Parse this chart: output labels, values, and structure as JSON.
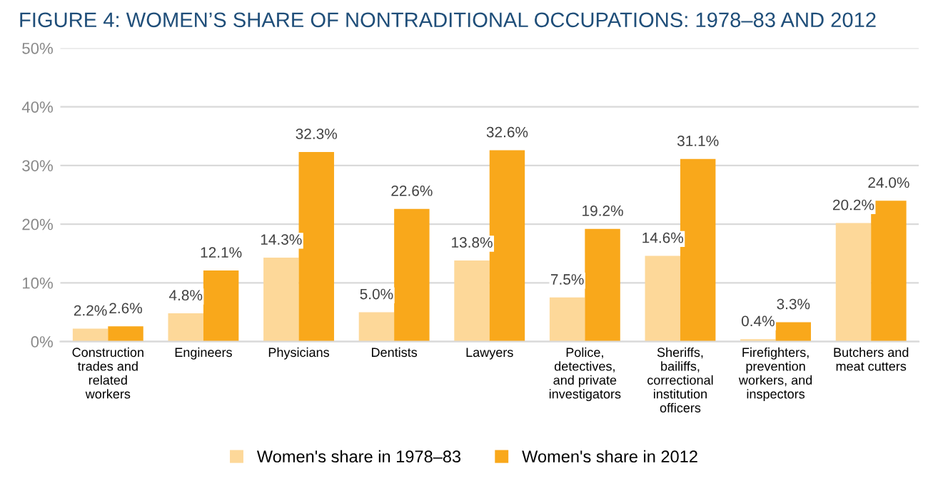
{
  "chart_data": {
    "type": "bar",
    "title": "FIGURE 4: WOMEN’S SHARE OF NONTRADITIONAL OCCUPATIONS: 1978–83 AND 2012",
    "categories": [
      "Construction\ntrades and\nrelated\nworkers",
      "Engineers",
      "Physicians",
      "Dentists",
      "Lawyers",
      "Police,\ndetectives,\nand private\ninvestigators",
      "Sheriffs,\nbailiffs,\ncorrectional\ninstitution\nofficers",
      "Firefighters,\nprevention\nworkers, and\ninspectors",
      "Butchers and\nmeat cutters"
    ],
    "series": [
      {
        "name": "Women's share in 1978–83",
        "color": "#fdd899",
        "values": [
          2.2,
          4.8,
          14.3,
          5.0,
          13.8,
          7.5,
          14.6,
          0.4,
          20.2
        ],
        "value_labels": [
          "2.2%",
          "4.8%",
          "14.3%",
          "5.0%",
          "13.8%",
          "7.5%",
          "14.6%",
          "0.4%",
          "20.2%"
        ]
      },
      {
        "name": "Women's share in 2012",
        "color": "#f9a81b",
        "values": [
          2.6,
          12.1,
          32.3,
          22.6,
          32.6,
          19.2,
          31.1,
          3.3,
          24.0
        ],
        "value_labels": [
          "2.6%",
          "12.1%",
          "32.3%",
          "22.6%",
          "32.6%",
          "19.2%",
          "31.1%",
          "3.3%",
          "24.0%"
        ]
      }
    ],
    "ylim": [
      0,
      50
    ],
    "yticks": [
      {
        "value": 0,
        "label": "0%"
      },
      {
        "value": 10,
        "label": "10%"
      },
      {
        "value": 20,
        "label": "20%"
      },
      {
        "value": 30,
        "label": "30%"
      },
      {
        "value": 40,
        "label": "40%"
      },
      {
        "value": 50,
        "label": "50%"
      }
    ],
    "grid": "y",
    "legend": "bottom"
  }
}
